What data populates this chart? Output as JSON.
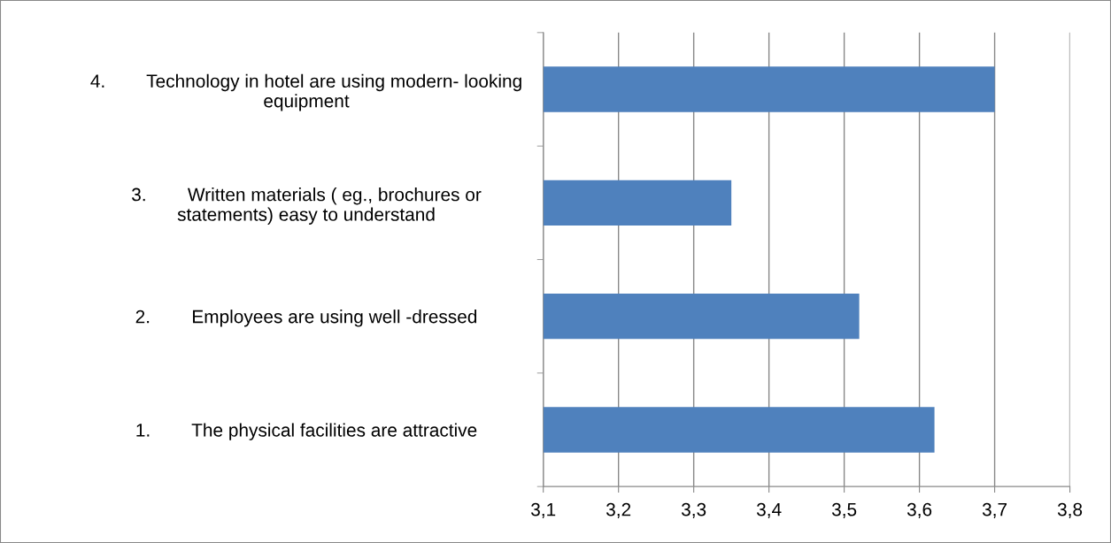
{
  "chart_data": {
    "type": "bar",
    "orientation": "horizontal",
    "categories": [
      "4.        Technology in hotel are using modern- looking\nequipment",
      "3.        Written materials ( eg., brochures or\nstatements) easy to understand",
      "2.        Employees are using well -dressed",
      "1.        The physical facilities are attractive"
    ],
    "values": [
      3.7,
      3.35,
      3.52,
      3.62
    ],
    "color": "#4f81bd",
    "xlim": [
      3.1,
      3.8
    ],
    "xticks": [
      {
        "value": 3.1,
        "label": "3,1"
      },
      {
        "value": 3.2,
        "label": "3,2"
      },
      {
        "value": 3.3,
        "label": "3,3"
      },
      {
        "value": 3.4,
        "label": "3,4"
      },
      {
        "value": 3.5,
        "label": "3,5"
      },
      {
        "value": 3.6,
        "label": "3,6"
      },
      {
        "value": 3.7,
        "label": "3,7"
      },
      {
        "value": 3.8,
        "label": "3,8"
      }
    ],
    "grid": "x",
    "legend": false
  }
}
